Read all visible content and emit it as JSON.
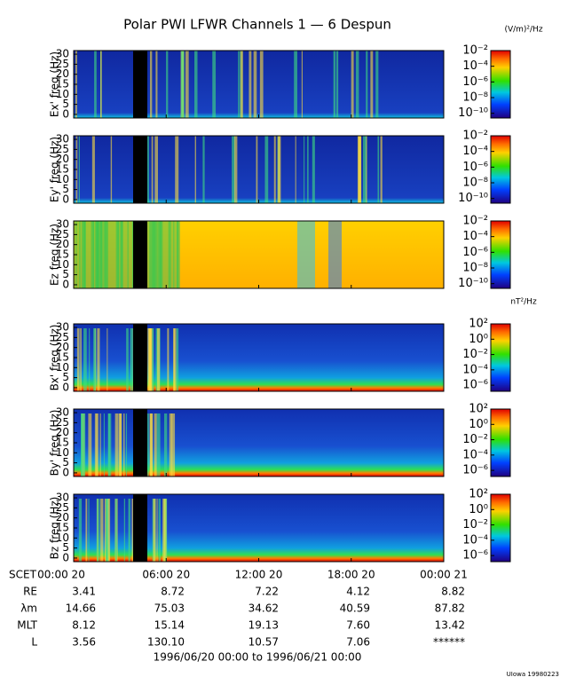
{
  "chart_data": {
    "type": "spectrogram",
    "title": "Polar PWI LFWR Channels 1 — 6 Despun",
    "units": [
      "(V/m)²/Hz",
      "nT²/Hz"
    ],
    "xlim": [
      0,
      24
    ],
    "xticks": [
      {
        "value": 0,
        "label": "00:00 20"
      },
      {
        "value": 6,
        "label": "06:00 20"
      },
      {
        "value": 12,
        "label": "12:00 20"
      },
      {
        "value": 18,
        "label": "18:00 20"
      },
      {
        "value": 24,
        "label": "00:00 21"
      }
    ],
    "panels": [
      {
        "ylabel": "Ex' freq (Hz)",
        "ylim": [
          -1.8,
          31.8
        ],
        "yticks": [
          0,
          5,
          10,
          15,
          20,
          25,
          30
        ],
        "style": "e-sparse",
        "log_colorbar": true,
        "clim": [
          2.5e-11,
          0.01
        ],
        "colorbar_ticks": [
          {
            "value": 0.01,
            "label": "10⁻²"
          },
          {
            "value": 0.0001,
            "label": "10⁻⁴"
          },
          {
            "value": 1e-06,
            "label": "10⁻⁶"
          },
          {
            "value": 1e-08,
            "label": "10⁻⁸"
          },
          {
            "value": 1e-10,
            "label": "10⁻¹⁰"
          }
        ]
      },
      {
        "ylabel": "Ey' freq (Hz)",
        "ylim": [
          -1.8,
          31.8
        ],
        "yticks": [
          0,
          5,
          10,
          15,
          20,
          25,
          30
        ],
        "style": "e-sparse",
        "log_colorbar": true,
        "clim": [
          2.5e-11,
          0.01
        ],
        "colorbar_ticks": [
          {
            "value": 0.01,
            "label": "10⁻²"
          },
          {
            "value": 0.0001,
            "label": "10⁻⁴"
          },
          {
            "value": 1e-06,
            "label": "10⁻⁶"
          },
          {
            "value": 1e-08,
            "label": "10⁻⁸"
          },
          {
            "value": 1e-10,
            "label": "10⁻¹⁰"
          }
        ]
      },
      {
        "ylabel": "Ez freq (Hz)",
        "ylim": [
          -1.8,
          31.8
        ],
        "yticks": [
          0,
          5,
          10,
          15,
          20,
          25,
          30
        ],
        "style": "e-dense",
        "log_colorbar": true,
        "clim": [
          2.5e-11,
          0.01
        ],
        "colorbar_ticks": [
          {
            "value": 0.01,
            "label": "10⁻²"
          },
          {
            "value": 0.0001,
            "label": "10⁻⁴"
          },
          {
            "value": 1e-06,
            "label": "10⁻⁶"
          },
          {
            "value": 1e-08,
            "label": "10⁻⁸"
          },
          {
            "value": 1e-10,
            "label": "10⁻¹⁰"
          }
        ]
      },
      {
        "ylabel": "Bx' freq (Hz)",
        "ylim": [
          -1.8,
          31.8
        ],
        "yticks": [
          0,
          5,
          10,
          15,
          20,
          25,
          30
        ],
        "style": "b",
        "log_colorbar": true,
        "clim": [
          1.6e-07,
          100
        ],
        "colorbar_ticks": [
          {
            "value": 100,
            "label": "10²"
          },
          {
            "value": 1,
            "label": "10⁰"
          },
          {
            "value": 0.01,
            "label": "10⁻²"
          },
          {
            "value": 0.0001,
            "label": "10⁻⁴"
          },
          {
            "value": 1e-06,
            "label": "10⁻⁶"
          }
        ]
      },
      {
        "ylabel": "By' freq (Hz)",
        "ylim": [
          -1.8,
          31.8
        ],
        "yticks": [
          0,
          5,
          10,
          15,
          20,
          25,
          30
        ],
        "style": "b",
        "log_colorbar": true,
        "clim": [
          1.6e-07,
          100
        ],
        "colorbar_ticks": [
          {
            "value": 100,
            "label": "10²"
          },
          {
            "value": 1,
            "label": "10⁰"
          },
          {
            "value": 0.01,
            "label": "10⁻²"
          },
          {
            "value": 0.0001,
            "label": "10⁻⁴"
          },
          {
            "value": 1e-06,
            "label": "10⁻⁶"
          }
        ]
      },
      {
        "ylabel": "Bz freq (Hz)",
        "ylim": [
          -1.8,
          31.8
        ],
        "yticks": [
          0,
          5,
          10,
          15,
          20,
          25,
          30
        ],
        "style": "b",
        "log_colorbar": true,
        "clim": [
          1.6e-07,
          100
        ],
        "colorbar_ticks": [
          {
            "value": 100,
            "label": "10²"
          },
          {
            "value": 1,
            "label": "10⁰"
          },
          {
            "value": 0.01,
            "label": "10⁻²"
          },
          {
            "value": 0.0001,
            "label": "10⁻⁴"
          },
          {
            "value": 1e-06,
            "label": "10⁻⁶"
          }
        ]
      }
    ],
    "time_label": "SCET",
    "ephemeris": [
      {
        "label": "RE",
        "values": [
          "3.41",
          "8.72",
          "7.22",
          "4.12",
          "8.82"
        ]
      },
      {
        "label": "λm",
        "values": [
          "14.66",
          "75.03",
          "34.62",
          "40.59",
          "87.82"
        ]
      },
      {
        "label": "MLT",
        "values": [
          "8.12",
          "15.14",
          "19.13",
          "7.60",
          "13.42"
        ]
      },
      {
        "label": "L",
        "values": [
          "3.56",
          "130.10",
          "10.57",
          "7.06",
          "******"
        ]
      }
    ],
    "date_range": "1996/06/20 00:00 to 1996/06/21 00:00",
    "footer": "UIowa 19980223"
  }
}
